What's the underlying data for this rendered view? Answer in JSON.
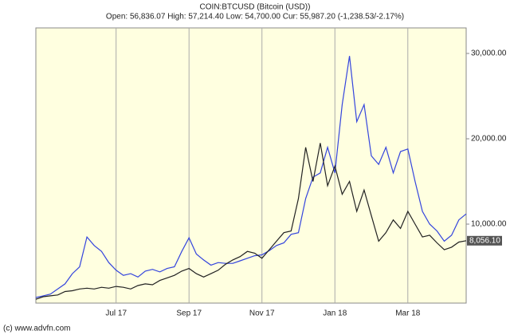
{
  "chart_data": {
    "type": "line",
    "title": "COIN:BTCUSD (Bitcoin (USD))",
    "subtitle": "Open: 56,836.07 High: 57,214.40 Low: 54,700.00 Cur: 55,987.20 (-1,238.53/-2.17%)",
    "footer": "(c) www.advfn.com",
    "categories": [
      null,
      null,
      null,
      null,
      null,
      null,
      null,
      null,
      null,
      null,
      null,
      "Jul 17",
      null,
      null,
      null,
      null,
      null,
      null,
      null,
      null,
      null,
      "Sep 17",
      null,
      null,
      null,
      null,
      null,
      null,
      null,
      null,
      null,
      "Nov 17",
      null,
      null,
      null,
      null,
      null,
      null,
      null,
      null,
      null,
      "Jan 18",
      null,
      null,
      null,
      null,
      null,
      null,
      null,
      null,
      null,
      "Mar 18",
      null,
      null,
      null,
      null,
      null,
      null,
      null,
      null
    ],
    "series": [
      {
        "color": "#3344dd",
        "values": [
          1400,
          1600,
          1800,
          2400,
          3000,
          4200,
          5000,
          8500,
          7500,
          6800,
          5500,
          4600,
          4000,
          4200,
          3800,
          4500,
          4700,
          4400,
          4800,
          5000,
          6800,
          8400,
          6500,
          5800,
          5200,
          5500,
          5400,
          5400,
          5700,
          6000,
          6300,
          6400,
          6900,
          7500,
          7800,
          8800,
          9000,
          13000,
          15500,
          16000,
          19000,
          16000,
          24000,
          29700,
          22000,
          24000,
          18000,
          17000,
          19000,
          16000,
          18500,
          18800,
          15000,
          11500,
          10000,
          9200,
          8000,
          8700,
          10500,
          11200
        ]
      },
      {
        "color": "#222222",
        "values": [
          1200,
          1500,
          1600,
          1700,
          2100,
          2200,
          2400,
          2500,
          2400,
          2600,
          2500,
          2700,
          2600,
          2400,
          2800,
          3000,
          2900,
          3400,
          3700,
          4000,
          4500,
          4800,
          4200,
          3800,
          4200,
          4600,
          5300,
          5800,
          6200,
          6800,
          6600,
          6000,
          7000,
          8000,
          9000,
          9200,
          13000,
          19000,
          15000,
          19500,
          14500,
          16800,
          13500,
          15000,
          11500,
          14000,
          11000,
          8000,
          9000,
          10500,
          9500,
          11500,
          10000,
          8500,
          8700,
          7800,
          7000,
          7300,
          7900,
          8056.1
        ],
        "value_labels": [
          null,
          null,
          null,
          null,
          null,
          null,
          null,
          null,
          null,
          null,
          null,
          null,
          null,
          null,
          null,
          null,
          null,
          null,
          null,
          null,
          null,
          null,
          null,
          null,
          null,
          null,
          null,
          null,
          null,
          null,
          null,
          null,
          null,
          null,
          null,
          null,
          null,
          null,
          null,
          null,
          null,
          null,
          null,
          null,
          null,
          null,
          null,
          null,
          null,
          null,
          null,
          null,
          null,
          null,
          null,
          null,
          null,
          null,
          null,
          "8,056.10"
        ]
      }
    ],
    "ylim": [
      748,
      32990
    ],
    "yticks": [
      {
        "value": 10000,
        "label": "10,000.00"
      },
      {
        "value": 20000,
        "label": "20,000.00"
      },
      {
        "value": 30000,
        "label": "30,000.00"
      }
    ],
    "grid": true,
    "background": "#ffffe0"
  }
}
